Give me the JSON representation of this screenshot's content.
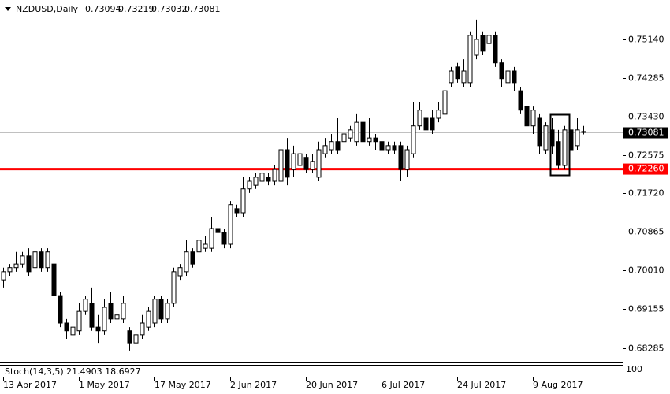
{
  "chart_data": {
    "type": "candlestick",
    "title": "NZDUSD,Daily",
    "categories": [
      "13 Apr 2017",
      null,
      null,
      null,
      null,
      null,
      null,
      null,
      null,
      null,
      null,
      null,
      "1 May 2017",
      null,
      null,
      null,
      null,
      null,
      null,
      null,
      null,
      null,
      null,
      null,
      "17 May 2017",
      null,
      null,
      null,
      null,
      null,
      null,
      null,
      null,
      null,
      null,
      null,
      "2 Jun 2017",
      null,
      null,
      null,
      null,
      null,
      null,
      null,
      null,
      null,
      null,
      null,
      "20 Jun 2017",
      null,
      null,
      null,
      null,
      null,
      null,
      null,
      null,
      null,
      null,
      null,
      "6 Jul 2017",
      null,
      null,
      null,
      null,
      null,
      null,
      null,
      null,
      null,
      null,
      null,
      "24 Jul 2017",
      null,
      null,
      null,
      null,
      null,
      null,
      null,
      null,
      null,
      null,
      null,
      "9 Aug 2017",
      null,
      null,
      null,
      null,
      null,
      null,
      null,
      null
    ],
    "open": [
      0.698,
      0.6998,
      0.7007,
      0.7015,
      0.7033,
      0.7007,
      0.7042,
      0.7007,
      0.7015,
      0.6945,
      0.6884,
      0.6858,
      0.6867,
      0.691,
      0.6928,
      0.6875,
      0.6867,
      0.6928,
      0.6893,
      0.6893,
      0.6867,
      0.684,
      0.6858,
      0.6875,
      0.6884,
      0.6937,
      0.6893,
      0.6928,
      0.6989,
      0.6998,
      0.7042,
      0.7042,
      0.705,
      0.705,
      0.7094,
      0.7085,
      0.7059,
      0.7138,
      0.7129,
      0.7182,
      0.719,
      0.7199,
      0.7208,
      0.7199,
      0.7199,
      0.7269,
      0.7225,
      0.7234,
      0.7252,
      0.7225,
      0.7208,
      0.726,
      0.7269,
      0.7287,
      0.7287,
      0.7295,
      0.7287,
      0.733,
      0.7287,
      0.7295,
      0.7287,
      0.7269,
      0.7278,
      0.7278,
      0.7225,
      0.726,
      0.7322,
      0.7339,
      0.7339,
      0.7339,
      0.7348,
      0.7418,
      0.7453,
      0.7418,
      0.7418,
      0.7479,
      0.7523,
      0.7505,
      0.7523,
      0.7462,
      0.7418,
      0.7444,
      0.74,
      0.7365,
      0.7322,
      0.7339,
      0.7269,
      0.7313,
      0.7287,
      0.7234,
      0.7313,
      0.7278,
      0.73094
    ],
    "high": [
      0.7007,
      0.7015,
      0.7042,
      0.7042,
      0.705,
      0.705,
      0.705,
      0.705,
      0.7024,
      0.6954,
      0.6893,
      0.691,
      0.6928,
      0.6945,
      0.6963,
      0.6902,
      0.6937,
      0.6954,
      0.691,
      0.6945,
      0.6875,
      0.6867,
      0.6902,
      0.6919,
      0.6945,
      0.6945,
      0.6937,
      0.7007,
      0.7015,
      0.7068,
      0.705,
      0.7077,
      0.7077,
      0.712,
      0.7103,
      0.7094,
      0.7155,
      0.7147,
      0.7208,
      0.7208,
      0.7217,
      0.7225,
      0.7217,
      0.7234,
      0.7322,
      0.7295,
      0.7278,
      0.7295,
      0.726,
      0.726,
      0.7287,
      0.7295,
      0.7304,
      0.7339,
      0.7313,
      0.7322,
      0.7348,
      0.7348,
      0.7339,
      0.7304,
      0.7295,
      0.7287,
      0.7287,
      0.7287,
      0.7278,
      0.7374,
      0.7374,
      0.7374,
      0.7357,
      0.7374,
      0.7409,
      0.7453,
      0.7462,
      0.747,
      0.7532,
      0.7558,
      0.7532,
      0.7532,
      0.7532,
      0.747,
      0.7453,
      0.7453,
      0.7409,
      0.7374,
      0.7365,
      0.7348,
      0.733,
      0.7339,
      0.7313,
      0.7322,
      0.733,
      0.7339,
      0.73219
    ],
    "low": [
      0.6963,
      0.6989,
      0.6998,
      0.7007,
      0.6989,
      0.6998,
      0.6998,
      0.6998,
      0.6937,
      0.6875,
      0.6849,
      0.6849,
      0.6858,
      0.6902,
      0.6867,
      0.684,
      0.6858,
      0.6884,
      0.6884,
      0.6884,
      0.6823,
      0.6823,
      0.6849,
      0.6867,
      0.6875,
      0.6884,
      0.6884,
      0.6919,
      0.698,
      0.6989,
      0.7007,
      0.7033,
      0.7042,
      0.7042,
      0.7077,
      0.705,
      0.705,
      0.712,
      0.712,
      0.7173,
      0.7182,
      0.719,
      0.719,
      0.719,
      0.719,
      0.719,
      0.7208,
      0.7217,
      0.7217,
      0.7217,
      0.7199,
      0.7252,
      0.726,
      0.726,
      0.7269,
      0.7287,
      0.7278,
      0.7278,
      0.7278,
      0.7269,
      0.726,
      0.726,
      0.726,
      0.7199,
      0.7208,
      0.7252,
      0.7313,
      0.726,
      0.7304,
      0.733,
      0.7339,
      0.7409,
      0.7418,
      0.7409,
      0.7409,
      0.747,
      0.7479,
      0.7497,
      0.7453,
      0.7409,
      0.7409,
      0.74,
      0.7348,
      0.7313,
      0.7304,
      0.726,
      0.726,
      0.726,
      0.7225,
      0.7225,
      0.726,
      0.7269,
      0.73032
    ],
    "close": [
      0.6998,
      0.7007,
      0.7015,
      0.7033,
      0.6998,
      0.7042,
      0.7007,
      0.7042,
      0.6945,
      0.6884,
      0.6867,
      0.6875,
      0.691,
      0.6937,
      0.6875,
      0.6867,
      0.6919,
      0.6893,
      0.6902,
      0.6928,
      0.684,
      0.6858,
      0.6884,
      0.691,
      0.6937,
      0.6893,
      0.6928,
      0.6998,
      0.7007,
      0.7042,
      0.7015,
      0.7068,
      0.7059,
      0.7094,
      0.7085,
      0.7059,
      0.7147,
      0.7129,
      0.7182,
      0.7199,
      0.7208,
      0.7217,
      0.7199,
      0.7225,
      0.7269,
      0.7208,
      0.726,
      0.726,
      0.7225,
      0.7243,
      0.7269,
      0.7278,
      0.7287,
      0.7269,
      0.7304,
      0.7313,
      0.733,
      0.7287,
      0.7295,
      0.7287,
      0.7269,
      0.7278,
      0.7269,
      0.7225,
      0.7269,
      0.7322,
      0.7357,
      0.7313,
      0.7313,
      0.7357,
      0.74,
      0.7444,
      0.7427,
      0.7444,
      0.7523,
      0.7514,
      0.7488,
      0.7523,
      0.7462,
      0.7427,
      0.7444,
      0.7418,
      0.7357,
      0.7322,
      0.7357,
      0.7278,
      0.7322,
      0.7278,
      0.7234,
      0.7313,
      0.7269,
      0.7313,
      0.73081
    ],
    "up_color": "#ffffff",
    "down_color": "#000000",
    "ylim": [
      0.67965,
      0.76015
    ],
    "yticks": [
      {
        "value": 0.7514,
        "label": "0.75140"
      },
      0.74285,
      {
        "value": 0.7343,
        "label": "0.73430"
      },
      0.72575,
      {
        "value": 0.7172,
        "label": "0.71720"
      },
      0.70865,
      {
        "value": 0.7001,
        "label": "0.70010"
      },
      0.69155,
      0.68285
    ],
    "hline": {
      "value": 0.7226,
      "label": "0.72260",
      "color": "#ff0000"
    },
    "indicator": {
      "name": "Stoch(14,3,5)",
      "values": [
        21.4903,
        18.6927
      ],
      "yticks": [
        100
      ]
    }
  }
}
